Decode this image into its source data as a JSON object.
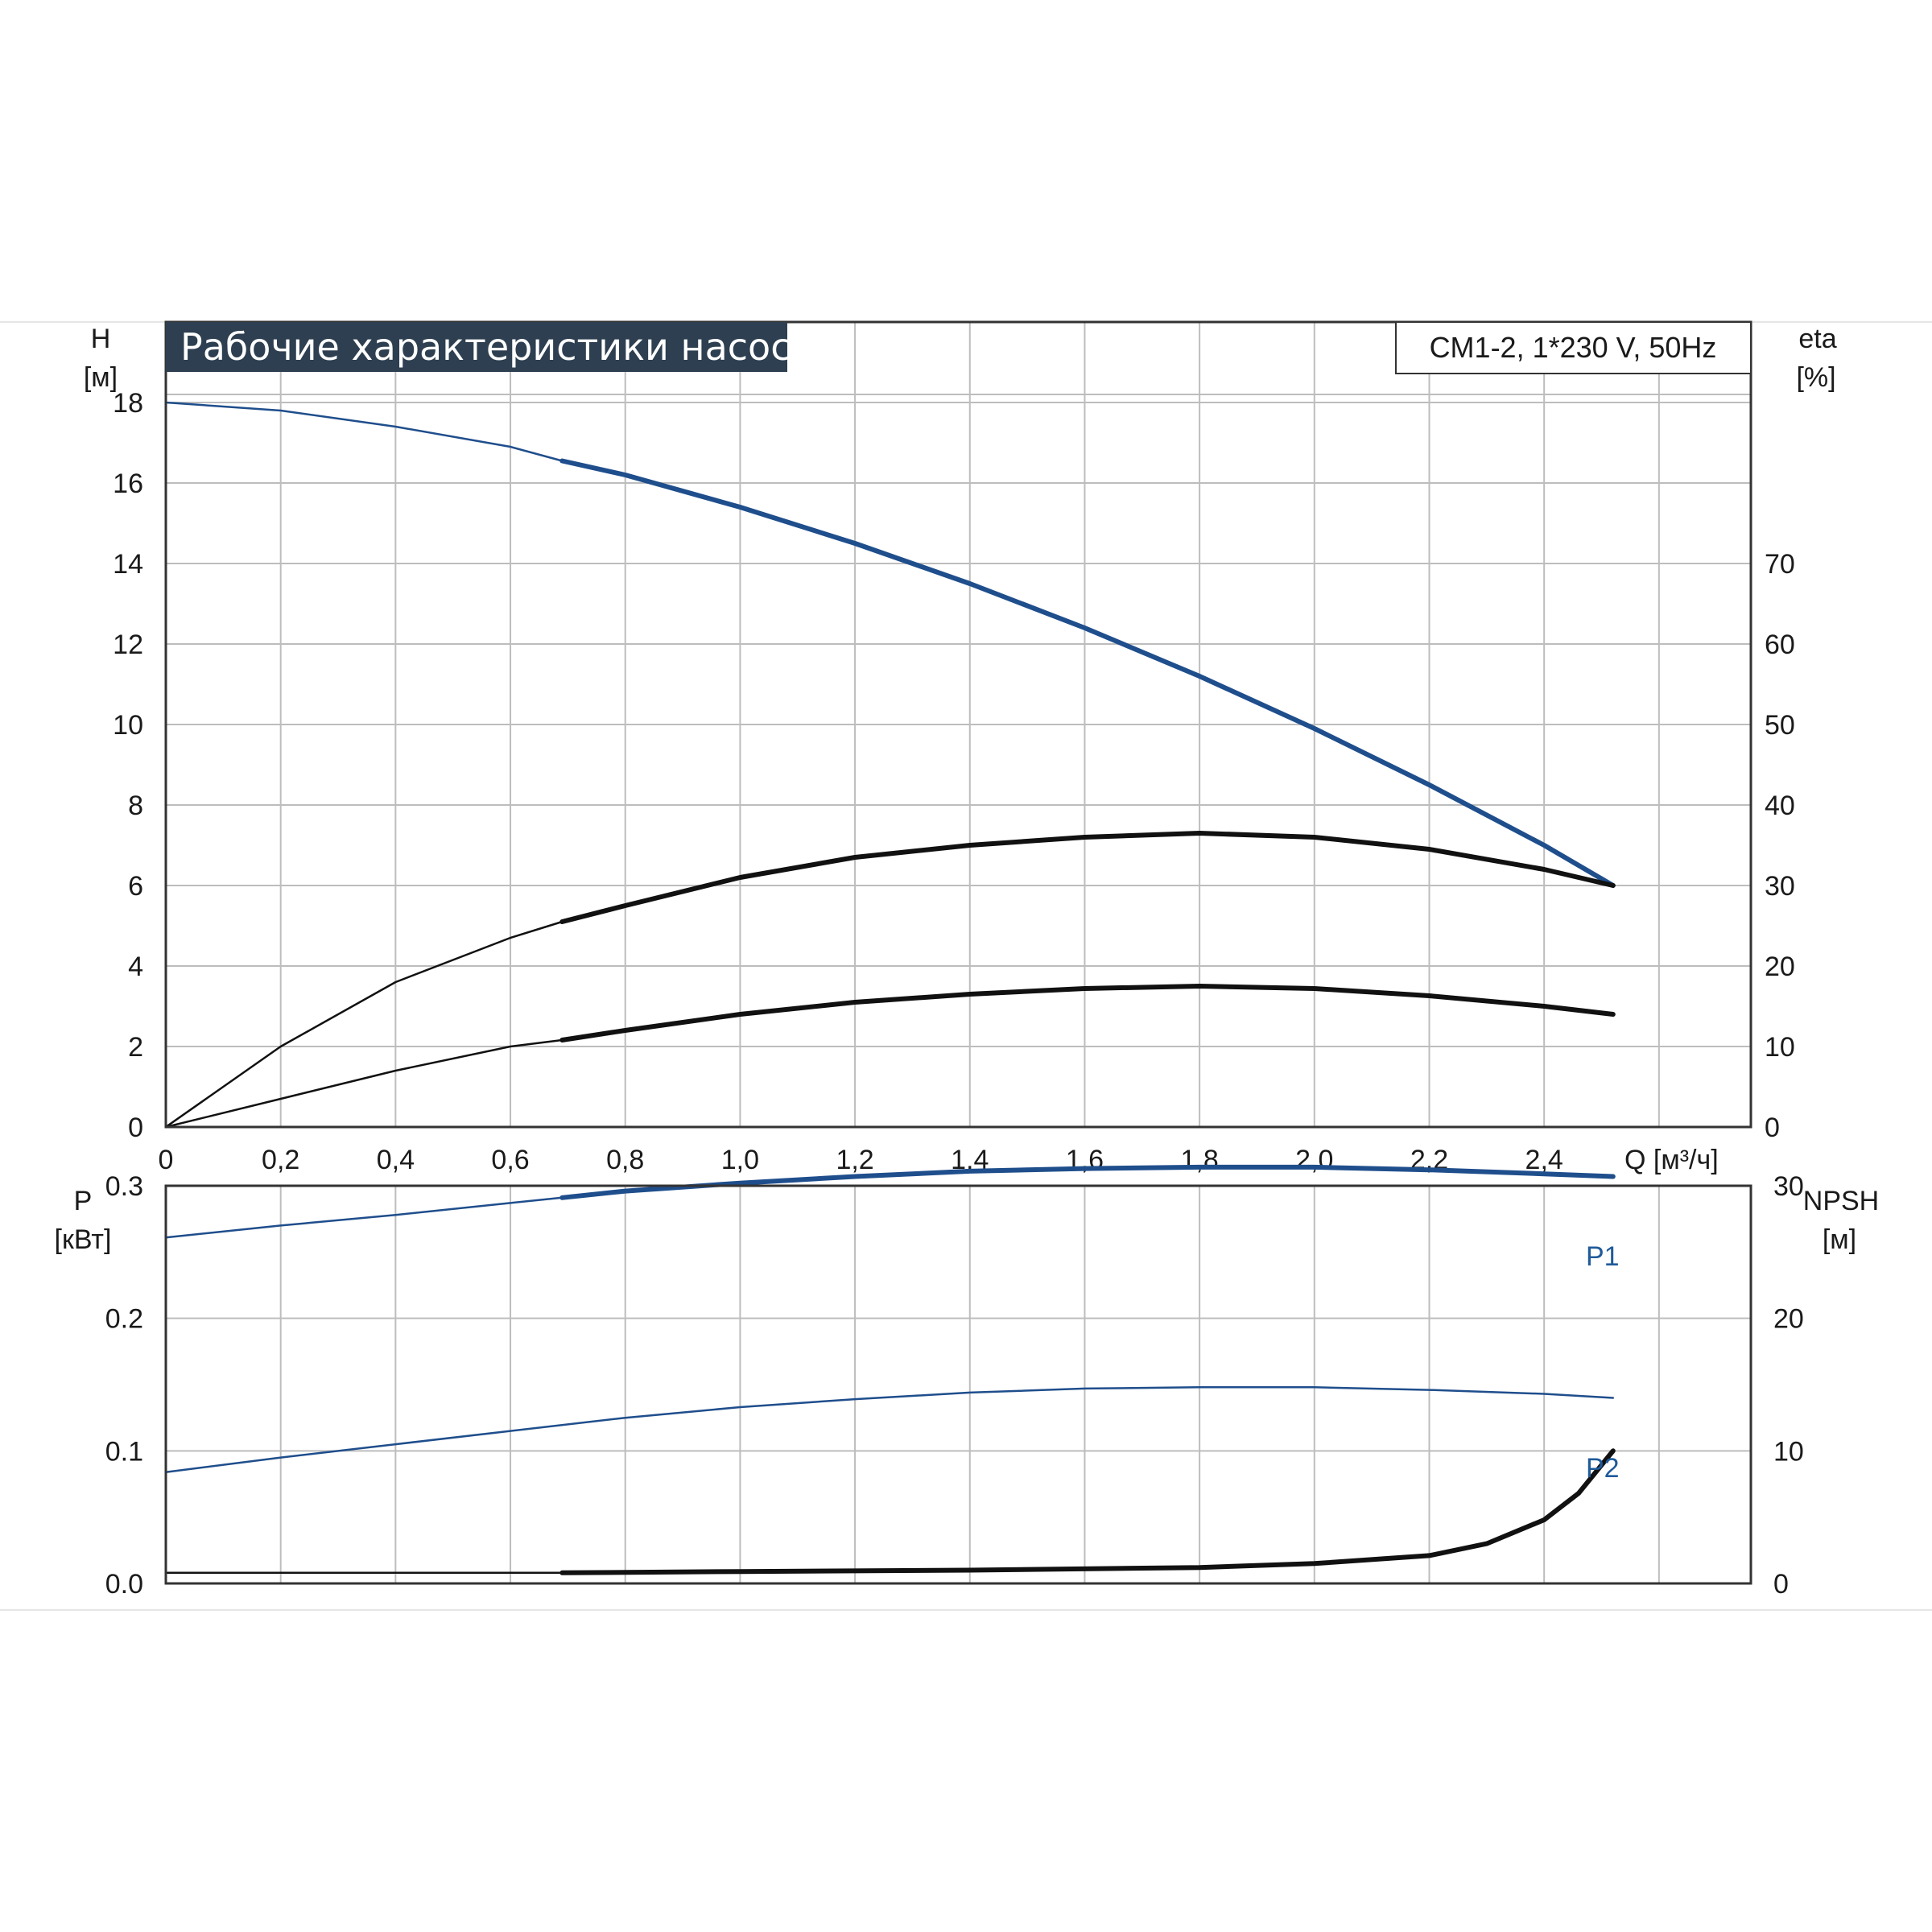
{
  "colors": {
    "blue": "#1f4e8c",
    "black": "#111111",
    "grid": "#bdbdbd",
    "title_bg": "#2d3f50"
  },
  "chart_data": [
    {
      "type": "line",
      "title": "Рабочие характеристики насоса",
      "model": "CM1-2, 1*230 V, 50Hz",
      "xlabel": "Q [м³/ч]",
      "ylabel_left": [
        "H",
        "[м]"
      ],
      "ylabel_right": [
        "eta",
        "[%]"
      ],
      "xlim": [
        0,
        2.76
      ],
      "ylim_left": [
        0,
        20
      ],
      "ylim_right": [
        0,
        100
      ],
      "x_ticks": [
        "0",
        "0,2",
        "0,4",
        "0,6",
        "0,8",
        "1,0",
        "1,2",
        "1,4",
        "1,6",
        "1,8",
        "2,0",
        "2,2",
        "2,4"
      ],
      "y_ticks_left": [
        "0",
        "2",
        "4",
        "6",
        "8",
        "10",
        "12",
        "14",
        "16",
        "18"
      ],
      "y_ticks_right": [
        "0",
        "10",
        "20",
        "30",
        "40",
        "50",
        "60",
        "70"
      ],
      "grid": true,
      "series": [
        {
          "axis": "left",
          "color": "#1f4e8c",
          "bold_from": 0.69,
          "x": [
            0,
            0.2,
            0.4,
            0.6,
            0.69,
            0.8,
            1.0,
            1.2,
            1.4,
            1.6,
            1.8,
            2.0,
            2.2,
            2.4,
            2.52
          ],
          "values": [
            18.0,
            17.8,
            17.4,
            16.9,
            16.55,
            16.2,
            15.4,
            14.5,
            13.5,
            12.4,
            11.2,
            9.9,
            8.5,
            7.0,
            6.0
          ]
        },
        {
          "axis": "right",
          "color": "#111111",
          "bold_from": 0.69,
          "x": [
            0,
            0.2,
            0.4,
            0.6,
            0.69,
            0.8,
            1.0,
            1.2,
            1.4,
            1.6,
            1.8,
            2.0,
            2.2,
            2.4,
            2.52
          ],
          "values": [
            0,
            10,
            18,
            23.5,
            25.5,
            27.5,
            31,
            33.5,
            35,
            36,
            36.5,
            36,
            34.5,
            32,
            30
          ]
        },
        {
          "axis": "right",
          "color": "#111111",
          "bold_from": 0.69,
          "x": [
            0,
            0.2,
            0.4,
            0.6,
            0.69,
            0.8,
            1.0,
            1.2,
            1.4,
            1.6,
            1.8,
            2.0,
            2.2,
            2.4,
            2.52
          ],
          "values": [
            0,
            3.5,
            7,
            10,
            10.8,
            12,
            14,
            15.5,
            16.5,
            17.2,
            17.5,
            17.2,
            16.3,
            15,
            14
          ]
        }
      ]
    },
    {
      "type": "line",
      "ylabel_left": [
        "P",
        "[кВт]"
      ],
      "ylabel_right": [
        "NPSH",
        "[м]"
      ],
      "xlim": [
        0,
        2.76
      ],
      "ylim_left": [
        0,
        0.3
      ],
      "ylim_right": [
        0,
        30
      ],
      "y_ticks_left": [
        "0.0",
        "0.1",
        "0.2",
        "0.3"
      ],
      "y_ticks_right": [
        "0",
        "10",
        "20",
        "30"
      ],
      "grid": true,
      "series": [
        {
          "name": "P1",
          "axis": "left",
          "color": "#1f4e8c",
          "bold_from": 0.69,
          "x": [
            0,
            0.2,
            0.4,
            0.6,
            0.69,
            0.8,
            1.0,
            1.2,
            1.4,
            1.6,
            1.8,
            2.0,
            2.2,
            2.4,
            2.52
          ],
          "values": [
            0.261,
            0.27,
            0.278,
            0.287,
            0.291,
            0.296,
            0.302,
            0.307,
            0.311,
            0.313,
            0.314,
            0.314,
            0.312,
            0.309,
            0.307
          ]
        },
        {
          "name": "P2",
          "axis": "left",
          "color": "#1f4e8c",
          "bold_from": null,
          "x": [
            0,
            0.2,
            0.4,
            0.6,
            0.8,
            1.0,
            1.2,
            1.4,
            1.6,
            1.8,
            2.0,
            2.2,
            2.4,
            2.52
          ],
          "values": [
            0.084,
            0.095,
            0.105,
            0.115,
            0.125,
            0.133,
            0.139,
            0.144,
            0.147,
            0.148,
            0.148,
            0.146,
            0.143,
            0.14
          ]
        },
        {
          "axis": "right",
          "color": "#111111",
          "bold_from": 0.69,
          "x": [
            0,
            0.69,
            1.0,
            1.4,
            1.8,
            2.0,
            2.2,
            2.3,
            2.4,
            2.46,
            2.52
          ],
          "values": [
            0.8,
            0.8,
            0.9,
            1.0,
            1.2,
            1.5,
            2.1,
            3.0,
            4.8,
            6.8,
            10
          ]
        }
      ]
    }
  ]
}
